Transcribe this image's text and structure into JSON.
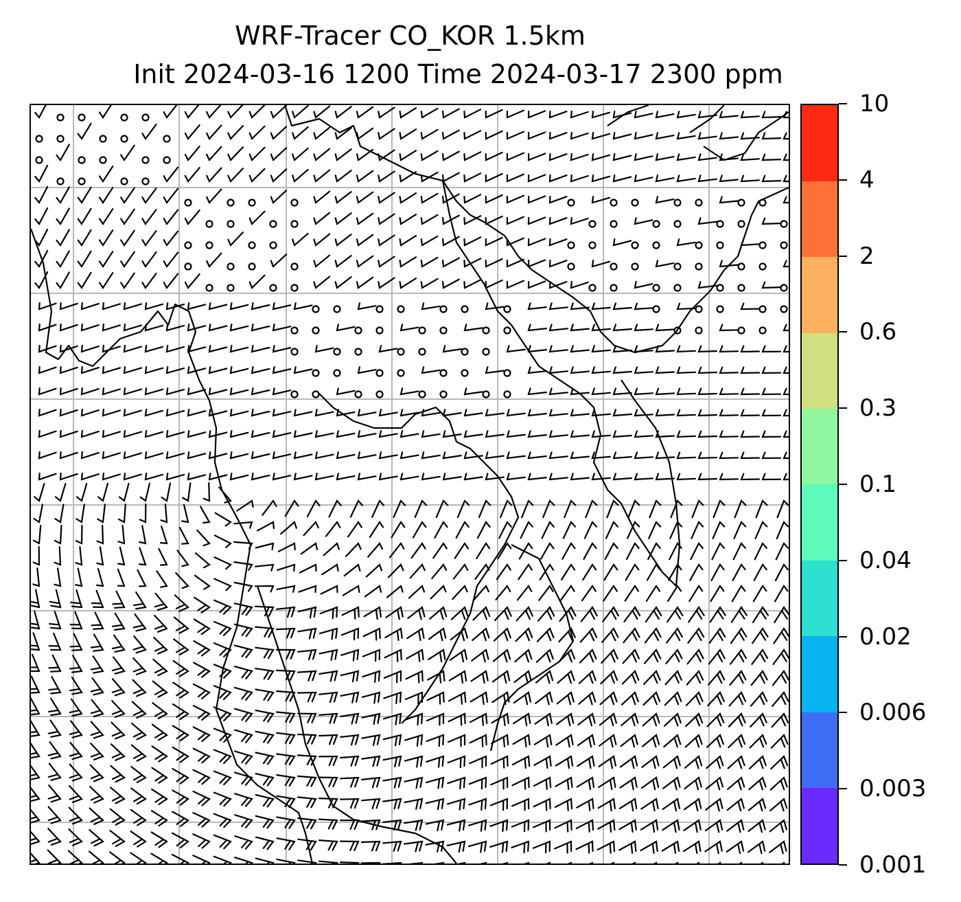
{
  "title": {
    "line1": "WRF-Tracer CO_KOR 1.5km",
    "line2": "Init 2024-03-16 1200 Time 2024-03-17 2300 ppm"
  },
  "map": {
    "gridlines": true,
    "grid_color": "#b8b8b8",
    "coastline_color": "#000000",
    "wind_barbs": true,
    "calm_markers": true
  },
  "colorbar": {
    "levels": [
      "0.001",
      "0.003",
      "0.006",
      "0.02",
      "0.04",
      "0.1",
      "0.3",
      "0.6",
      "2",
      "4",
      "10"
    ],
    "colors": [
      "#6a2bff",
      "#3f6ef5",
      "#06b3ee",
      "#2fe0d0",
      "#5ef9bd",
      "#8ff79f",
      "#d0e080",
      "#fdb060",
      "#ff7138",
      "#ff2a12"
    ]
  }
}
